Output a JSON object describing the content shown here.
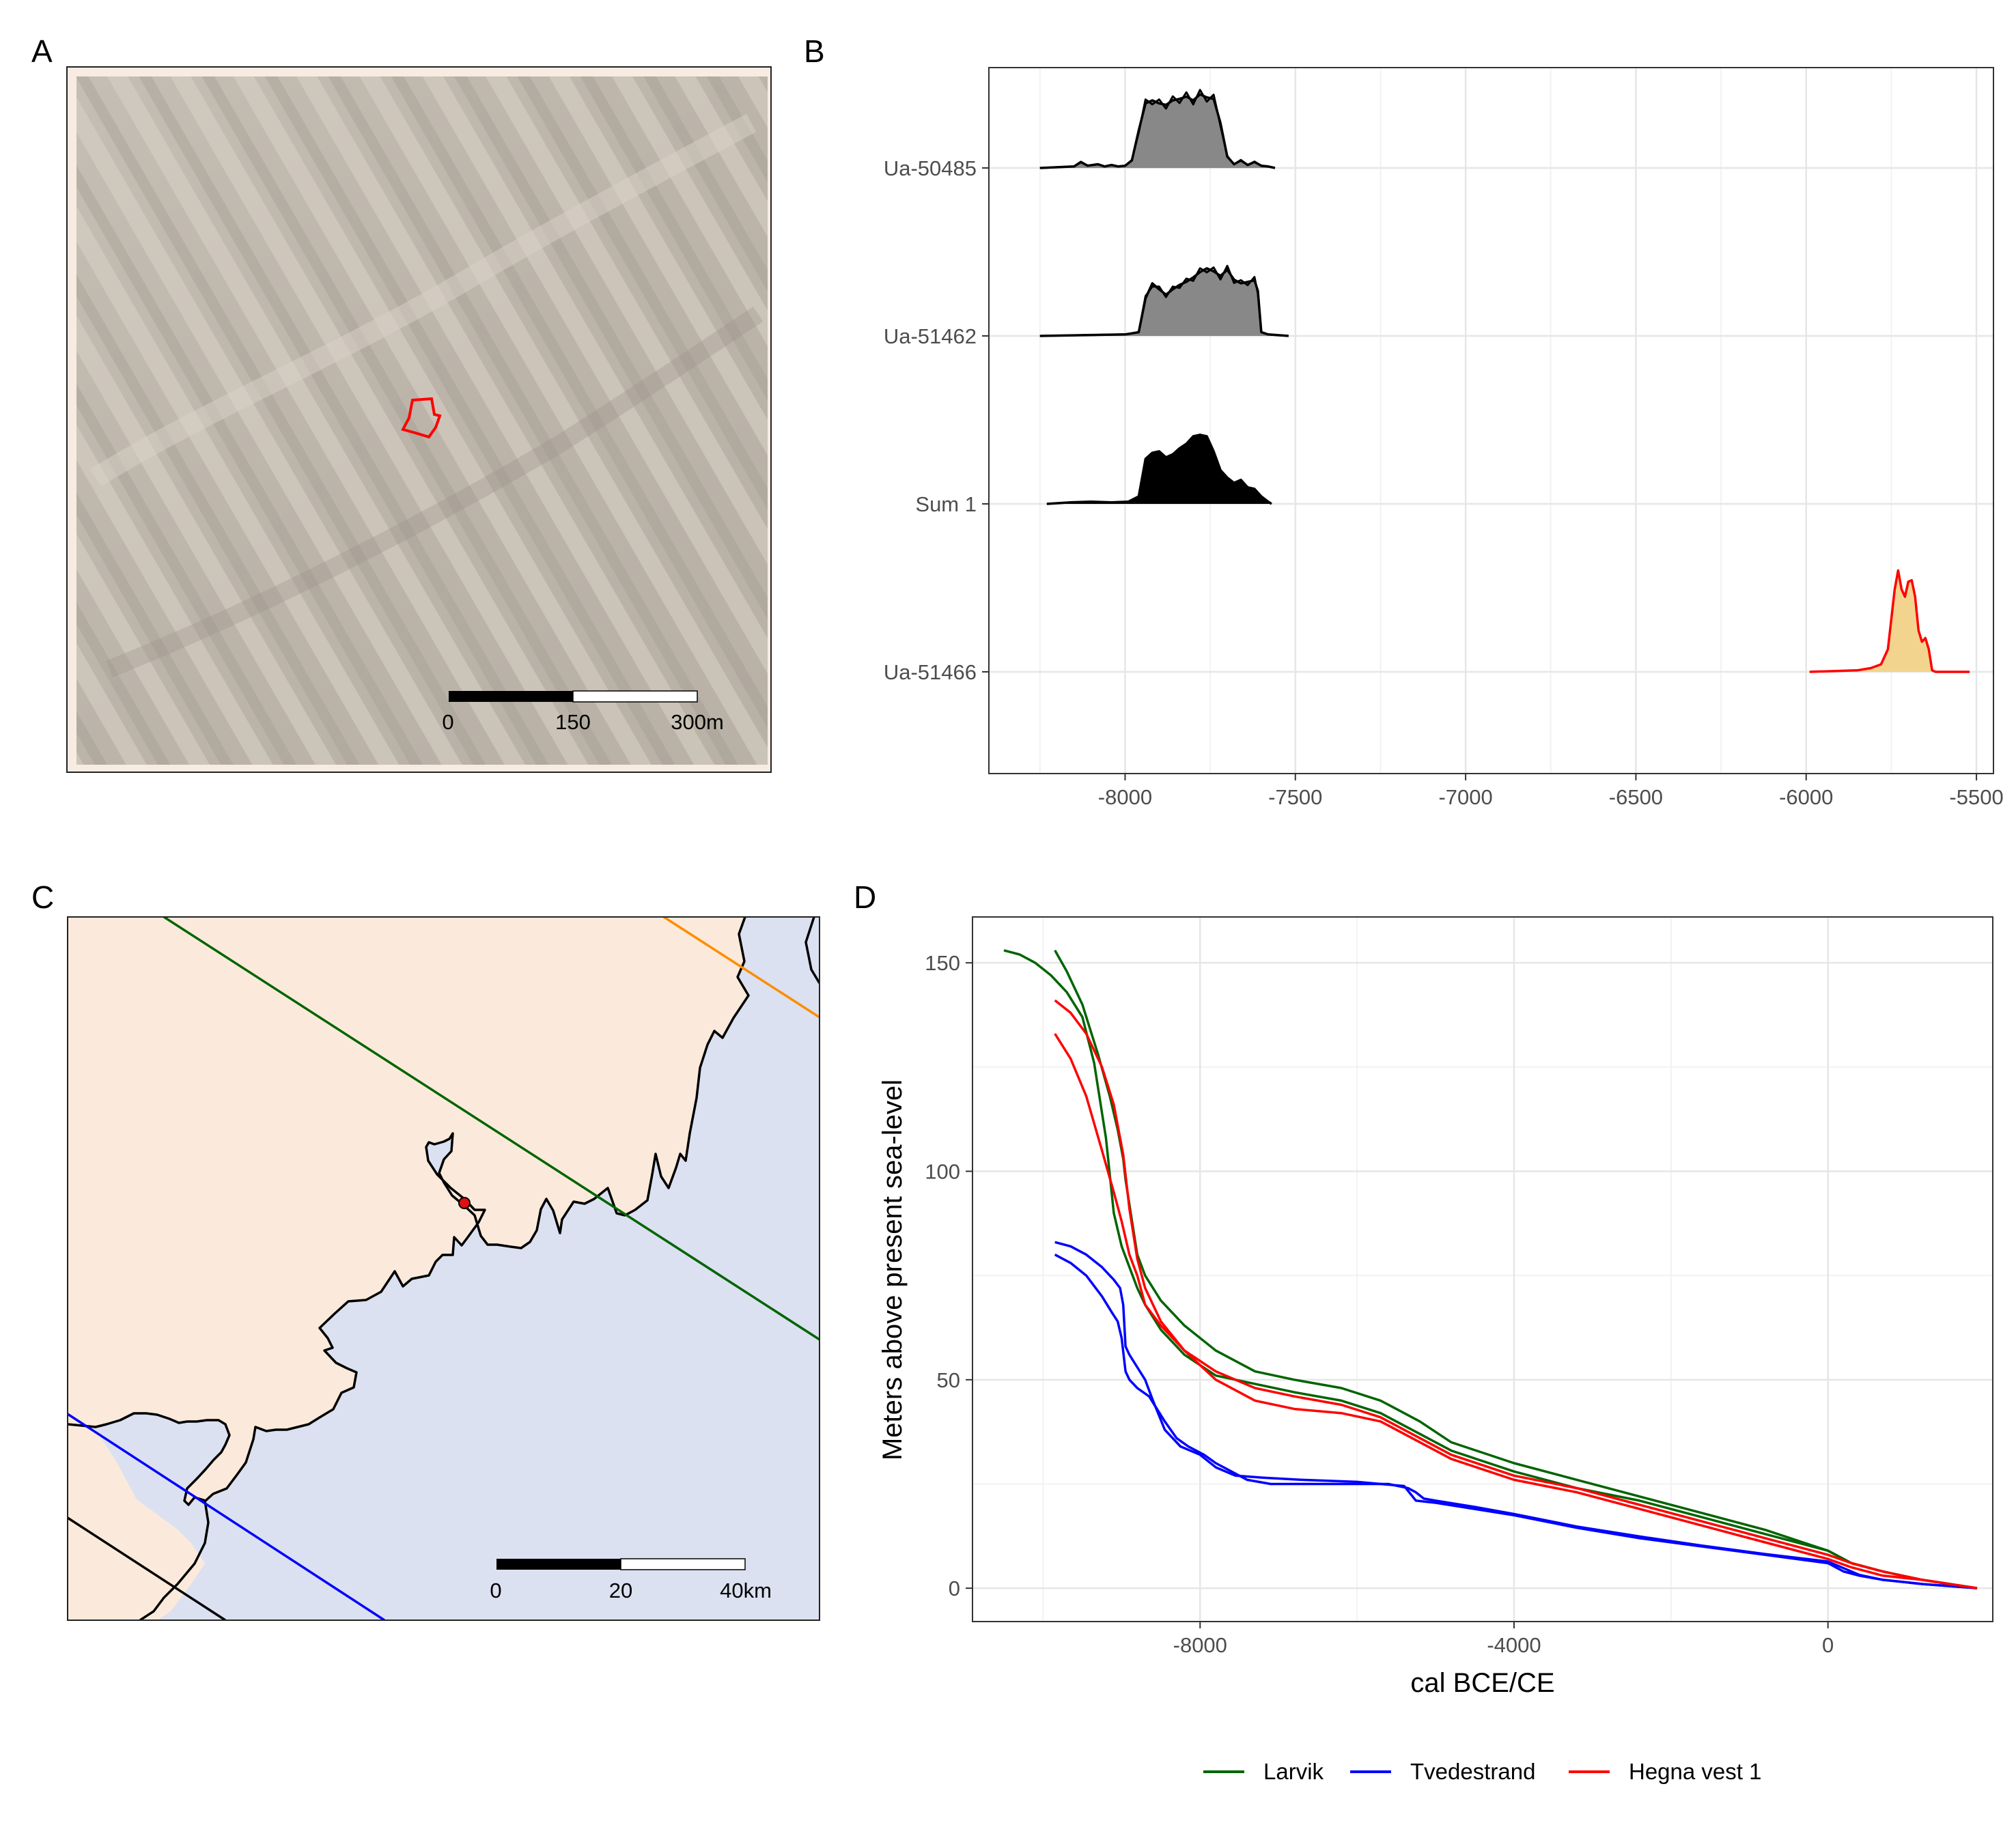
{
  "figure": {
    "panel_labels": [
      "A",
      "B",
      "C",
      "D"
    ]
  },
  "panel_a": {
    "scalebar": {
      "ticks": [
        "0",
        "150",
        "300m"
      ]
    }
  },
  "panel_c": {
    "scalebar": {
      "ticks": [
        "0",
        "20",
        "40km"
      ]
    }
  },
  "chart_data": [
    {
      "panel": "B",
      "type": "area",
      "title": "",
      "xlabel": "",
      "ylabel": "",
      "x_ticks": [
        -8000,
        -7500,
        -7000,
        -6500,
        -6000,
        -5500
      ],
      "xlim": [
        -8400,
        -5450
      ],
      "categories": [
        "Ua-50485",
        "Ua-51462",
        "Sum 1",
        "Ua-51466"
      ],
      "colors": {
        "dated_fill": "#888888",
        "sum_fill": "#000000",
        "target_fill": "#f3d48f",
        "target_line": "#ff0000"
      },
      "series": [
        {
          "category": "Ua-50485",
          "x": [
            -8250,
            -8150,
            -8130,
            -8110,
            -8080,
            -8060,
            -8040,
            -8020,
            -8000,
            -7980,
            -7960,
            -7940,
            -7920,
            -7900,
            -7880,
            -7860,
            -7840,
            -7820,
            -7800,
            -7780,
            -7760,
            -7740,
            -7720,
            -7700,
            -7680,
            -7660,
            -7640,
            -7620,
            -7600,
            -7580,
            -7560
          ],
          "density": [
            0,
            0.02,
            0.08,
            0.03,
            0.05,
            0.02,
            0.04,
            0.02,
            0.03,
            0.1,
            0.5,
            0.86,
            0.9,
            0.86,
            0.84,
            0.9,
            0.92,
            0.95,
            0.9,
            0.98,
            0.94,
            0.92,
            0.6,
            0.15,
            0.05,
            0.1,
            0.04,
            0.08,
            0.03,
            0.02,
            0
          ]
        },
        {
          "category": "Ua-51462",
          "x": [
            -8250,
            -8000,
            -7960,
            -7940,
            -7920,
            -7900,
            -7880,
            -7860,
            -7840,
            -7820,
            -7800,
            -7780,
            -7760,
            -7740,
            -7720,
            -7700,
            -7680,
            -7660,
            -7640,
            -7620,
            -7610,
            -7600,
            -7580,
            -7520
          ],
          "density": [
            0,
            0.02,
            0.05,
            0.5,
            0.7,
            0.62,
            0.55,
            0.62,
            0.68,
            0.72,
            0.78,
            0.85,
            0.9,
            0.86,
            0.8,
            0.88,
            0.75,
            0.7,
            0.72,
            0.74,
            0.6,
            0.05,
            0.02,
            0
          ]
        },
        {
          "category": "Sum 1",
          "x": [
            -8230,
            -8160,
            -8100,
            -8040,
            -7990,
            -7960,
            -7940,
            -7920,
            -7900,
            -7880,
            -7860,
            -7840,
            -7820,
            -7800,
            -7780,
            -7760,
            -7740,
            -7720,
            -7700,
            -7680,
            -7660,
            -7640,
            -7620,
            -7600,
            -7580,
            -7570
          ],
          "density": [
            0,
            0.02,
            0.03,
            0.02,
            0.03,
            0.1,
            0.6,
            0.68,
            0.7,
            0.62,
            0.66,
            0.74,
            0.8,
            0.9,
            0.92,
            0.9,
            0.7,
            0.45,
            0.35,
            0.28,
            0.32,
            0.22,
            0.2,
            0.1,
            0.03,
            0
          ]
        },
        {
          "category": "Ua-51466",
          "x": [
            -5990,
            -5850,
            -5810,
            -5780,
            -5760,
            -5740,
            -5730,
            -5720,
            -5710,
            -5700,
            -5690,
            -5680,
            -5670,
            -5660,
            -5650,
            -5640,
            -5630,
            -5620,
            -5600,
            -5520
          ],
          "density": [
            0,
            0.02,
            0.05,
            0.1,
            0.3,
            1.1,
            1.35,
            1.1,
            1.0,
            1.2,
            1.22,
            1.0,
            0.55,
            0.4,
            0.45,
            0.3,
            0.02,
            0,
            0,
            0
          ]
        }
      ]
    },
    {
      "panel": "D",
      "type": "line",
      "title": "",
      "xlabel": "cal BCE/CE",
      "ylabel": "Meters above present sea-level",
      "x_ticks": [
        -8000,
        -4000,
        0
      ],
      "x_tick_labels": [
        "-8000",
        "-4000",
        "0"
      ],
      "y_ticks": [
        0,
        50,
        100,
        150
      ],
      "xlim": [
        -10900,
        2100
      ],
      "ylim": [
        -8,
        161
      ],
      "legend_position": "bottom",
      "series": [
        {
          "name": "Larvik",
          "color": "#006400",
          "x": [
            -9850,
            -9700,
            -9500,
            -9300,
            -9150,
            -9050,
            -8980,
            -8950,
            -8900,
            -8800,
            -8700,
            -8500,
            -8200,
            -7800,
            -7300,
            -6800,
            -6200,
            -5700,
            -5200,
            -4800,
            -4000,
            -3200,
            -2400,
            -1600,
            -800,
            0,
            300,
            700,
            1200,
            1900
          ],
          "y": [
            153,
            148,
            140,
            128,
            118,
            110,
            103,
            98,
            92,
            80,
            75,
            69,
            63,
            57,
            52,
            50,
            48,
            45,
            40,
            35,
            30,
            26,
            22,
            18,
            14,
            9,
            6,
            4,
            2,
            0
          ]
        },
        {
          "name": "Larvik",
          "color": "#006400",
          "x": [
            -10500,
            -10300,
            -10100,
            -9900,
            -9700,
            -9500,
            -9350,
            -9200,
            -9100,
            -9000,
            -8900,
            -8800,
            -8700,
            -8500,
            -8200,
            -7800,
            -7300,
            -6800,
            -6200,
            -5700,
            -5200,
            -4800,
            -4000,
            -3200,
            -2400,
            -1600,
            -800,
            0,
            300,
            700,
            1200,
            1900
          ],
          "y": [
            153,
            152,
            150,
            147,
            143,
            137,
            126,
            108,
            90,
            82,
            77,
            72,
            68,
            62,
            56,
            51,
            49,
            47,
            45,
            42,
            37,
            33,
            28,
            24,
            21,
            17,
            13,
            9,
            6,
            4,
            2,
            0
          ]
        },
        {
          "name": "Tvedestrand",
          "color": "#0000ff",
          "x": [
            -9850,
            -9650,
            -9450,
            -9250,
            -9100,
            -9020,
            -8980,
            -8950,
            -8900,
            -8800,
            -8700,
            -8600,
            -8450,
            -8250,
            -8000,
            -7800,
            -7550,
            -7200,
            -6700,
            -6000,
            -5400,
            -5250,
            -5150,
            -5000,
            -4500,
            -4000,
            -3200,
            -2400,
            -1600,
            -800,
            0,
            200,
            400,
            700,
            1200,
            1900
          ],
          "y": [
            83,
            82,
            80,
            77,
            74,
            72,
            68,
            58,
            56,
            53,
            50,
            45,
            38,
            34,
            32,
            29,
            27,
            26.5,
            26,
            25.5,
            24.5,
            21,
            20.8,
            20.5,
            19,
            17.5,
            14.5,
            12,
            10,
            8,
            6,
            4,
            3,
            2,
            1,
            0
          ]
        },
        {
          "name": "Tvedestrand",
          "color": "#0000ff",
          "x": [
            -9850,
            -9650,
            -9450,
            -9250,
            -9120,
            -9050,
            -9000,
            -8950,
            -8900,
            -8800,
            -8650,
            -8450,
            -8300,
            -8150,
            -7950,
            -7800,
            -7600,
            -7400,
            -7100,
            -6500,
            -5600,
            -5350,
            -5250,
            -5150,
            -5000,
            -4500,
            -4000,
            -3200,
            -2400,
            -1600,
            -800,
            0,
            200,
            400,
            700,
            1200,
            1900
          ],
          "y": [
            80,
            78,
            75,
            70,
            66,
            64,
            60,
            52,
            50,
            48,
            46,
            40,
            36,
            34,
            32,
            30,
            28,
            26,
            25,
            25,
            25,
            24,
            23,
            21.5,
            21,
            19.5,
            17.8,
            14.8,
            12.4,
            10.2,
            8.2,
            6.4,
            4.8,
            3.2,
            2,
            1,
            0
          ]
        },
        {
          "name": "Hegna vest 1",
          "color": "#ff0000",
          "x": [
            -9850,
            -9650,
            -9450,
            -9250,
            -9100,
            -9000,
            -8950,
            -8900,
            -8800,
            -8700,
            -8500,
            -8200,
            -7800,
            -7300,
            -6800,
            -6200,
            -5700,
            -5200,
            -4800,
            -4000,
            -3200,
            -2400,
            -1600,
            -800,
            0,
            300,
            700,
            1200,
            1900
          ],
          "y": [
            133,
            127,
            118,
            105,
            95,
            88,
            84,
            80,
            75,
            68,
            63,
            57,
            52,
            48,
            46,
            44,
            41,
            36,
            32,
            27,
            24,
            20,
            16,
            12,
            8,
            6,
            4,
            2,
            0
          ]
        },
        {
          "name": "Hegna vest 1",
          "color": "#ff0000",
          "x": [
            -9850,
            -9650,
            -9450,
            -9250,
            -9100,
            -8980,
            -8900,
            -8800,
            -8700,
            -8500,
            -8200,
            -7800,
            -7300,
            -6800,
            -6200,
            -5700,
            -5200,
            -4800,
            -4000,
            -3200,
            -2400,
            -1600,
            -800,
            0,
            300,
            700,
            1200,
            1900
          ],
          "y": [
            141,
            138,
            133,
            125,
            116,
            104,
            91,
            79,
            72,
            64,
            57,
            50,
            45,
            43,
            42,
            40,
            35,
            31,
            26,
            23,
            19,
            15,
            11,
            7,
            5,
            3,
            2,
            0
          ]
        }
      ],
      "legend": [
        {
          "label": "Larvik",
          "color": "#006400"
        },
        {
          "label": "Tvedestrand",
          "color": "#0000ff"
        },
        {
          "label": "Hegna vest 1",
          "color": "#ff0000"
        }
      ]
    }
  ]
}
